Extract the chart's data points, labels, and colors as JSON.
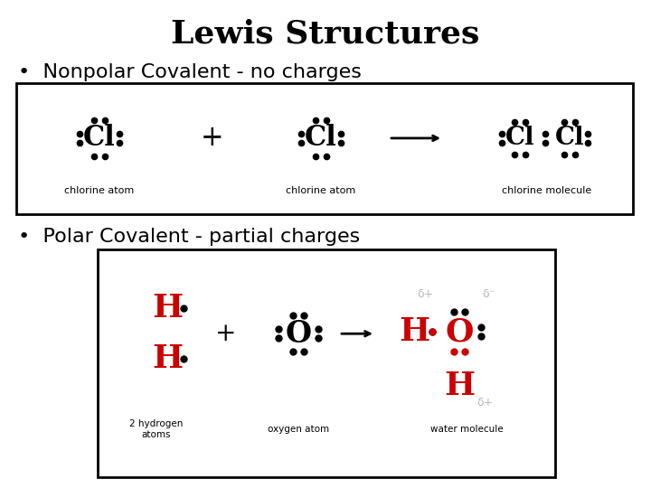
{
  "title": "Lewis Structures",
  "bullet1": "•  Nonpolar Covalent - no charges",
  "bullet2": "•  Polar Covalent - partial charges",
  "bg_color": "#ffffff",
  "title_fontsize": 26,
  "bullet_fontsize": 16,
  "red": "#cc0000",
  "gray": "#b8b8b8"
}
